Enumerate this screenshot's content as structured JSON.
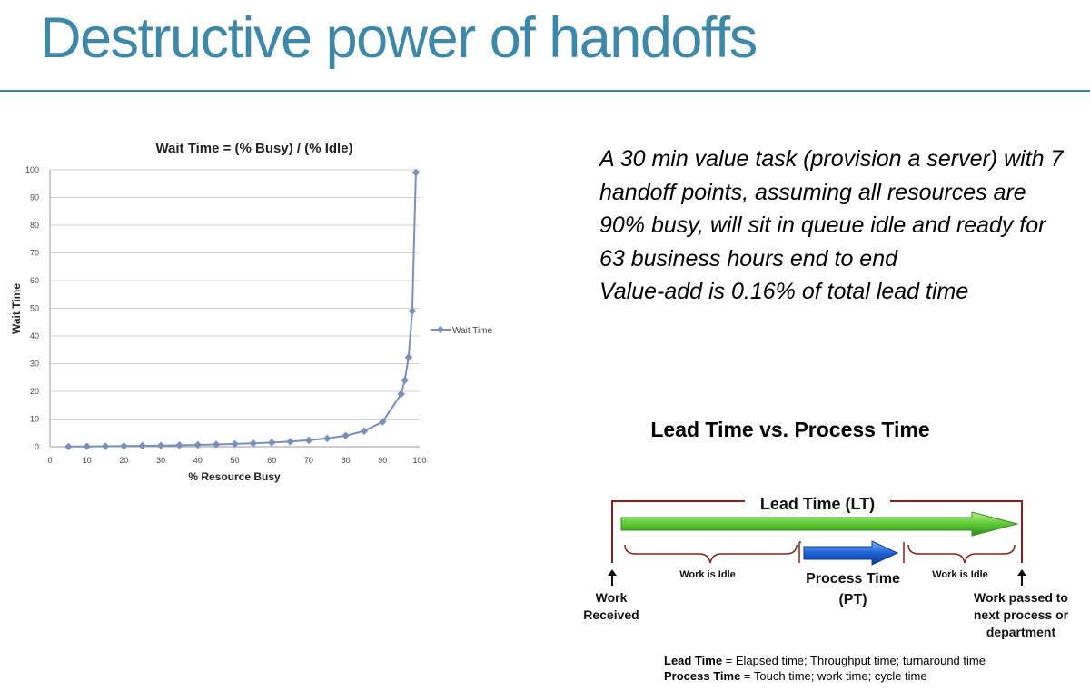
{
  "slide_title": "Destructive power of handoffs",
  "chart_data": {
    "type": "line",
    "title": "Wait Time = (% Busy) / (% Idle)",
    "xlabel": "% Resource Busy",
    "ylabel": "Wait Time",
    "xlim": [
      0,
      100
    ],
    "ylim": [
      0,
      100
    ],
    "xticks": [
      0,
      10,
      20,
      30,
      40,
      50,
      60,
      70,
      80,
      90,
      100
    ],
    "yticks": [
      0,
      10,
      20,
      30,
      40,
      50,
      60,
      70,
      80,
      90,
      100
    ],
    "grid": "horizontal",
    "legend": "right",
    "series": [
      {
        "name": "Wait Time",
        "color": "#7b8fbd",
        "x": [
          5,
          10,
          15,
          20,
          25,
          30,
          35,
          40,
          45,
          50,
          55,
          60,
          65,
          70,
          75,
          80,
          85,
          90,
          95,
          96,
          97,
          98,
          99
        ],
        "y": [
          0.05,
          0.11,
          0.18,
          0.25,
          0.33,
          0.43,
          0.54,
          0.67,
          0.82,
          1,
          1.22,
          1.5,
          1.86,
          2.33,
          3,
          4,
          5.67,
          9,
          19,
          24,
          32.3,
          49,
          99
        ]
      }
    ]
  },
  "summary_lines": [
    "A 30 min value task (provision a server) with 7 handoff points, assuming all resources are 90% busy, will sit in queue idle and ready  for 63 business hours end to end",
    "Value-add is 0.16% of total lead time"
  ],
  "lead_diagram": {
    "heading": "Lead Time vs. Process Time",
    "lead_time_label": "Lead Time (LT)",
    "idle_left_label": "Work is Idle",
    "idle_right_label": "Work is Idle",
    "process_time_label_1": "Process Time",
    "process_time_label_2": "(PT)",
    "work_received_1": "Work",
    "work_received_2": "Received",
    "work_passed_1": "Work passed to",
    "work_passed_2": "next process or",
    "work_passed_3": "department",
    "lead_color": "#5ec934",
    "process_color": "#1f62d6",
    "bracket_color": "#8a1e1e"
  },
  "definitions": [
    {
      "term": "Lead Time",
      "text": " = Elapsed time; Throughput time; turnaround time"
    },
    {
      "term": "Process Time",
      "text": " = Touch time; work time; cycle time"
    }
  ]
}
